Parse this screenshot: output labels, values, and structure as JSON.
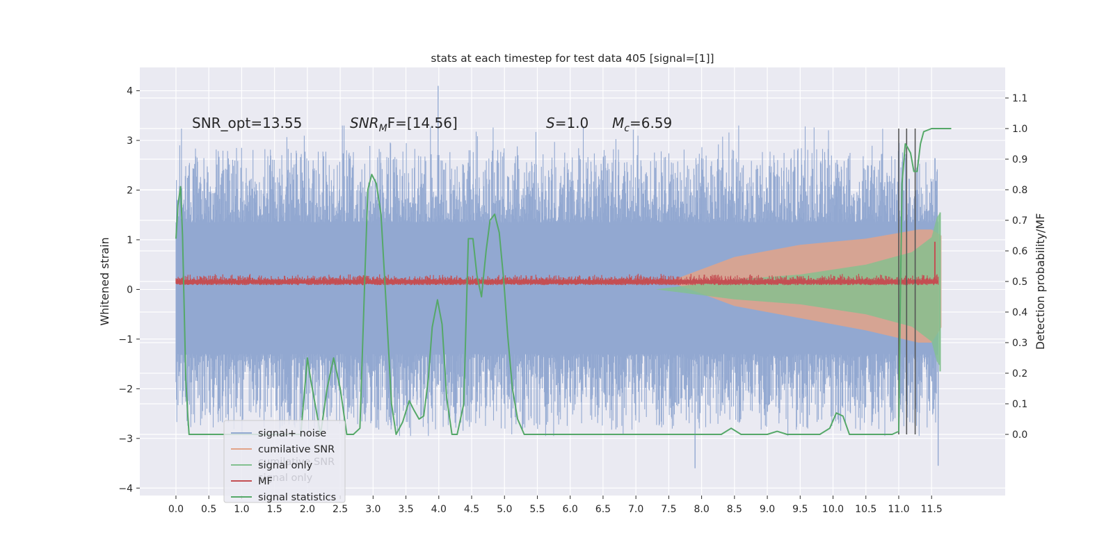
{
  "chart_data": {
    "type": "line",
    "title": "stats at each timestep for test data 405 [signal=[1]]",
    "xlabel": "",
    "ylabel": "Whitened strain",
    "ylabel_right": "Detection probability/MF",
    "xlim": [
      -0.55,
      12.62
    ],
    "ylim": [
      -4.15,
      4.47
    ],
    "ylim_right": [
      -0.2,
      1.2
    ],
    "x_ticks": [
      "0.0",
      "0.5",
      "1.0",
      "1.5",
      "2.0",
      "2.5",
      "3.0",
      "3.5",
      "4.0",
      "4.5",
      "5.0",
      "5.5",
      "6.0",
      "6.5",
      "7.0",
      "7.5",
      "8.0",
      "8.5",
      "9.0",
      "9.5",
      "10.0",
      "10.5",
      "11.0",
      "11.5"
    ],
    "y_ticks": [
      "4",
      "3",
      "2",
      "1",
      "0",
      "−1",
      "−2",
      "−3",
      "−4"
    ],
    "y_ticks_right": [
      "1.1",
      "1.0",
      "0.9",
      "0.8",
      "0.7",
      "0.6",
      "0.5",
      "0.4",
      "0.3",
      "0.2",
      "0.1",
      "0.0"
    ],
    "grid": true,
    "annotations": {
      "snr_opt": "SNR_opt=13.55",
      "snr_mf_label": "SNR",
      "snr_mf_sub": "M",
      "snr_mf_value": "F=[14.56]",
      "s_label": "S",
      "s_value": "=1.0",
      "mc_label": "M",
      "mc_sub": "c",
      "mc_value": "=6.59"
    },
    "legend": {
      "placement": "lower-left",
      "entries": [
        {
          "label": "signal+ noise",
          "color": "#92a8d1"
        },
        {
          "label": "cumilative SNR",
          "color": "#e2a388"
        },
        {
          "label": "signal only",
          "color": "#82c08f"
        },
        {
          "label": "MF",
          "color": "#c44e52"
        },
        {
          "label": "signal statistics",
          "color": "#55a868"
        }
      ],
      "ghost_entries": [
        "cumilative SNR",
        "signal only"
      ]
    },
    "vertical_lines_x": [
      11.0,
      11.12,
      11.25
    ],
    "series": [
      {
        "name": "signal statistics",
        "axis": "right",
        "color": "#55a868",
        "x": [
          0.0,
          0.03,
          0.07,
          0.1,
          0.15,
          0.18,
          0.2,
          0.25,
          0.3,
          0.4,
          0.6,
          1.0,
          1.5,
          1.9,
          2.0,
          2.05,
          2.1,
          2.2,
          2.3,
          2.4,
          2.5,
          2.6,
          2.7,
          2.8,
          2.88,
          2.92,
          2.98,
          3.05,
          3.12,
          3.2,
          3.28,
          3.35,
          3.45,
          3.55,
          3.62,
          3.7,
          3.77,
          3.84,
          3.9,
          3.98,
          4.05,
          4.12,
          4.2,
          4.28,
          4.38,
          4.45,
          4.52,
          4.58,
          4.65,
          4.72,
          4.78,
          4.85,
          4.92,
          4.99,
          5.05,
          5.12,
          5.2,
          5.3,
          5.4,
          5.5,
          5.6,
          5.7,
          6.0,
          7.0,
          7.5,
          8.0,
          8.3,
          8.45,
          8.6,
          9.0,
          9.15,
          9.3,
          9.5,
          9.8,
          9.95,
          10.05,
          10.15,
          10.25,
          10.5,
          10.9,
          11.0,
          11.02,
          11.05,
          11.1,
          11.13,
          11.18,
          11.23,
          11.28,
          11.33,
          11.38,
          11.5,
          11.65,
          11.8
        ],
        "y": [
          0.64,
          0.75,
          0.81,
          0.65,
          0.18,
          0.06,
          0.0,
          0.0,
          0.0,
          0.0,
          0.0,
          0.0,
          0.0,
          0.0,
          0.25,
          0.18,
          0.12,
          0.0,
          0.15,
          0.25,
          0.15,
          0.0,
          0.0,
          0.02,
          0.55,
          0.8,
          0.85,
          0.82,
          0.72,
          0.42,
          0.1,
          0.0,
          0.04,
          0.11,
          0.08,
          0.05,
          0.06,
          0.18,
          0.35,
          0.44,
          0.36,
          0.12,
          0.0,
          0.0,
          0.1,
          0.64,
          0.64,
          0.52,
          0.45,
          0.6,
          0.7,
          0.72,
          0.66,
          0.5,
          0.32,
          0.15,
          0.05,
          0.0,
          0.0,
          0.0,
          0.0,
          0.0,
          0.0,
          0.0,
          0.0,
          0.0,
          0.0,
          0.02,
          0.0,
          0.0,
          0.01,
          0.0,
          0.0,
          0.0,
          0.02,
          0.07,
          0.06,
          0.0,
          0.0,
          0.0,
          0.01,
          0.38,
          0.82,
          0.95,
          0.94,
          0.92,
          0.86,
          0.86,
          0.95,
          0.99,
          1.0,
          1.0,
          1.0
        ]
      },
      {
        "name": "signal+ noise",
        "axis": "left",
        "color": "#92a8d1",
        "x_range": [
          0.0,
          11.6
        ],
        "envelope_y": [
          -2.95,
          3.3
        ],
        "outlier_points": [
          {
            "x": 3.99,
            "y": 4.1
          },
          {
            "x": 7.9,
            "y": -3.6
          },
          {
            "x": 11.6,
            "y": -3.55
          }
        ]
      },
      {
        "name": "cumilative SNR",
        "axis": "right",
        "color": "#e2a388",
        "x": [
          7.5,
          8.5,
          9.5,
          10.5,
          11.3,
          11.5,
          11.65
        ],
        "upper": [
          0.5,
          0.58,
          0.62,
          0.64,
          0.67,
          0.67,
          0.65
        ],
        "lower": [
          0.5,
          0.42,
          0.38,
          0.34,
          0.3,
          0.3,
          0.35
        ]
      },
      {
        "name": "signal only",
        "axis": "left",
        "color": "#82c08f",
        "x": [
          7.3,
          8.5,
          9.5,
          10.5,
          11.2,
          11.5,
          11.58,
          11.63
        ],
        "amplitude": [
          0.0,
          0.2,
          0.3,
          0.5,
          0.75,
          1.05,
          1.45,
          1.55
        ]
      },
      {
        "name": "MF",
        "axis": "right",
        "color": "#c44e52",
        "x_range": [
          0.0,
          11.6
        ],
        "baseline": 0.5,
        "spike": {
          "x": 11.55,
          "y": 0.63
        }
      }
    ]
  }
}
